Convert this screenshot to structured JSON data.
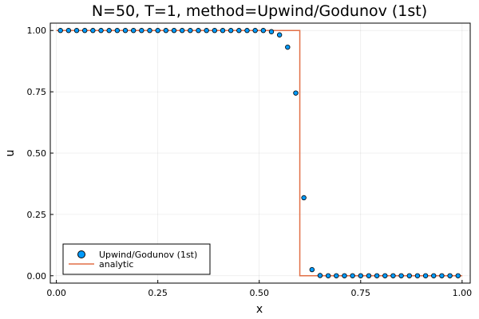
{
  "chart_data": {
    "type": "scatter",
    "title": "N=50, T=1, method=Upwind/Godunov (1st)",
    "xlabel": "x",
    "ylabel": "u",
    "xlim": [
      -0.015,
      1.02
    ],
    "ylim": [
      -0.03,
      1.03
    ],
    "xticks": [
      0.0,
      0.25,
      0.5,
      0.75,
      1.0
    ],
    "xtick_labels": [
      "0.00",
      "0.25",
      "0.50",
      "0.75",
      "1.00"
    ],
    "yticks": [
      0.0,
      0.25,
      0.5,
      0.75,
      1.0
    ],
    "ytick_labels": [
      "0.00",
      "0.25",
      "0.50",
      "0.75",
      "1.00"
    ],
    "grid": true,
    "legend_position": "bottom-left",
    "series": [
      {
        "name": "Upwind/Godunov (1st)",
        "kind": "scatter",
        "color": "#009AFA",
        "x": [
          0.01,
          0.03,
          0.05,
          0.07,
          0.09,
          0.11,
          0.13,
          0.15,
          0.17,
          0.19,
          0.21,
          0.23,
          0.25,
          0.27,
          0.29,
          0.31,
          0.33,
          0.35,
          0.37,
          0.39,
          0.41,
          0.43,
          0.45,
          0.47,
          0.49,
          0.51,
          0.53,
          0.55,
          0.57,
          0.59,
          0.61,
          0.63,
          0.65,
          0.67,
          0.69,
          0.71,
          0.73,
          0.75,
          0.77,
          0.79,
          0.81,
          0.83,
          0.85,
          0.87,
          0.89,
          0.91,
          0.93,
          0.95,
          0.97,
          0.99
        ],
        "y": [
          1.0,
          1.0,
          1.0,
          1.0,
          1.0,
          1.0,
          1.0,
          1.0,
          1.0,
          1.0,
          1.0,
          1.0,
          1.0,
          1.0,
          1.0,
          1.0,
          1.0,
          1.0,
          1.0,
          1.0,
          1.0,
          1.0,
          1.0,
          1.0,
          1.0,
          1.0,
          0.995,
          0.982,
          0.932,
          0.745,
          0.318,
          0.025,
          0.001,
          0.0,
          0.0,
          0.0,
          0.0,
          0.0,
          0.0,
          0.0,
          0.0,
          0.0,
          0.0,
          0.0,
          0.0,
          0.0,
          0.0,
          0.0,
          0.0,
          0.0
        ]
      },
      {
        "name": "analytic",
        "kind": "line",
        "color": "#E26F46",
        "x": [
          0.0,
          0.6,
          0.6,
          1.0
        ],
        "y": [
          1.0,
          1.0,
          0.0,
          0.0
        ]
      }
    ]
  }
}
